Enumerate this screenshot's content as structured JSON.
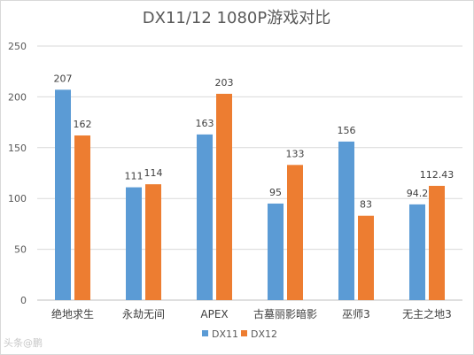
{
  "chart_data": {
    "type": "bar",
    "title": "DX11/12 1080P游戏对比",
    "categories": [
      "绝地求生",
      "永劫无间",
      "APEX",
      "古墓丽影暗影",
      "巫师3",
      "无主之地3"
    ],
    "series": [
      {
        "name": "DX11",
        "color": "#5b9bd5",
        "values": [
          207,
          111,
          163,
          95,
          156,
          94.2
        ],
        "labels": [
          "207",
          "111",
          "163",
          "95",
          "156",
          "94.2"
        ]
      },
      {
        "name": "DX12",
        "color": "#ed7d31",
        "values": [
          162,
          114,
          203,
          133,
          83,
          112.43
        ],
        "labels": [
          "162",
          "114",
          "203",
          "133",
          "83",
          "112.43"
        ]
      }
    ],
    "ylim": [
      0,
      250
    ],
    "yticks": [
      0,
      50,
      100,
      150,
      200,
      250
    ],
    "grid": true,
    "legend_position": "bottom"
  },
  "watermark": "头条@鹏"
}
